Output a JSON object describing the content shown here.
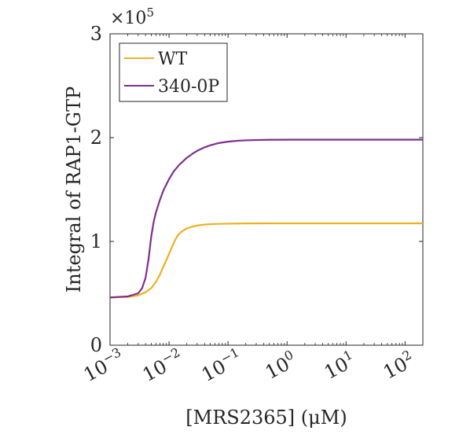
{
  "chart_data": {
    "type": "line",
    "title": "",
    "xlabel": "[MRS2365] (μM)",
    "ylabel": "Integral of RAP1-GTP",
    "x_scale": "log",
    "xlim": [
      0.001,
      200
    ],
    "ylim": [
      0,
      300000
    ],
    "y_multiplier": "×10",
    "y_multiplier_exp": "5",
    "x_ticks": [
      {
        "base": "10",
        "exp": "−3",
        "value": 0.001
      },
      {
        "base": "10",
        "exp": "−2",
        "value": 0.01
      },
      {
        "base": "10",
        "exp": "−1",
        "value": 0.1
      },
      {
        "base": "10",
        "exp": "0",
        "value": 1
      },
      {
        "base": "10",
        "exp": "1",
        "value": 10
      },
      {
        "base": "10",
        "exp": "2",
        "value": 100
      }
    ],
    "y_ticks": [
      {
        "label": "0",
        "value": 0
      },
      {
        "label": "1",
        "value": 100000
      },
      {
        "label": "2",
        "value": 200000
      },
      {
        "label": "3",
        "value": 300000
      }
    ],
    "grid": false,
    "legend_position": "top-left",
    "series": [
      {
        "name": "WT",
        "color": "#EDB120",
        "x": [
          0.001,
          0.002,
          0.003,
          0.004,
          0.005,
          0.006,
          0.007,
          0.008,
          0.009,
          0.01,
          0.011,
          0.012,
          0.013,
          0.014,
          0.015,
          0.016,
          0.018,
          0.02,
          0.025,
          0.03,
          0.04,
          0.05,
          0.07,
          0.1,
          0.2,
          0.5,
          1,
          10,
          100,
          200
        ],
        "y": [
          46000,
          46500,
          48000,
          51000,
          55000,
          61000,
          68000,
          75500,
          82000,
          88000,
          93500,
          98500,
          102500,
          105500,
          107500,
          109000,
          111000,
          112500,
          114300,
          115300,
          116200,
          116600,
          116900,
          117100,
          117300,
          117400,
          117400,
          117400,
          117400,
          117400
        ]
      },
      {
        "name": "340-0P",
        "color": "#7E2F8E",
        "x": [
          0.001,
          0.002,
          0.003,
          0.0035,
          0.004,
          0.0045,
          0.005,
          0.0055,
          0.006,
          0.007,
          0.008,
          0.01,
          0.012,
          0.015,
          0.02,
          0.025,
          0.03,
          0.04,
          0.05,
          0.07,
          0.1,
          0.15,
          0.2,
          0.3,
          0.5,
          1,
          2,
          10,
          100,
          200
        ],
        "y": [
          46000,
          47000,
          50000,
          55000,
          65000,
          83000,
          105000,
          119000,
          128000,
          140000,
          149000,
          160000,
          167500,
          174000,
          180500,
          184500,
          187300,
          190600,
          192600,
          194800,
          196100,
          197000,
          197400,
          197700,
          197900,
          198000,
          198000,
          198000,
          198000,
          198000
        ]
      }
    ]
  }
}
